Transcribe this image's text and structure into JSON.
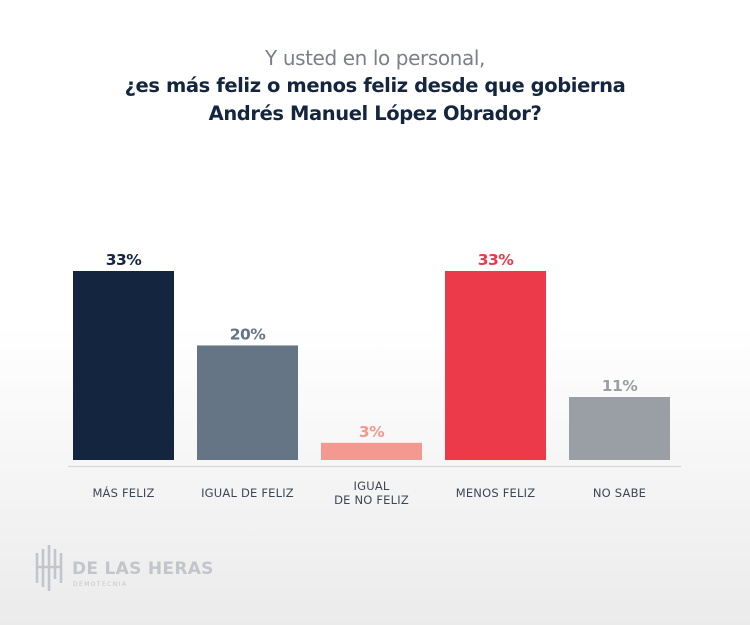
{
  "chart_data": {
    "type": "bar",
    "subtitle": "Y usted en lo personal,",
    "title_lines": [
      "¿es más feliz o menos feliz desde que gobierna",
      "Andrés Manuel López Obrador?"
    ],
    "categories": [
      [
        "MÁS FELIZ"
      ],
      [
        "IGUAL DE FELIZ"
      ],
      [
        "IGUAL",
        "DE NO FELIZ"
      ],
      [
        "MENOS FELIZ"
      ],
      [
        "NO SABE"
      ]
    ],
    "values": [
      33,
      20,
      3,
      33,
      11
    ],
    "value_labels": [
      "33%",
      "20%",
      "3%",
      "33%",
      "11%"
    ],
    "colors": [
      "#14263f",
      "#657586",
      "#f4998f",
      "#ec3a4b",
      "#9a9ea5"
    ],
    "value_label_colors": [
      "#14263f",
      "#657586",
      "#f4998f",
      "#ec3a4b",
      "#9a9ea5"
    ],
    "ylim": [
      0,
      33
    ],
    "grid": false
  },
  "logo": {
    "name": "DE LAS HERAS",
    "tagline": "DEMOTECNIA"
  }
}
